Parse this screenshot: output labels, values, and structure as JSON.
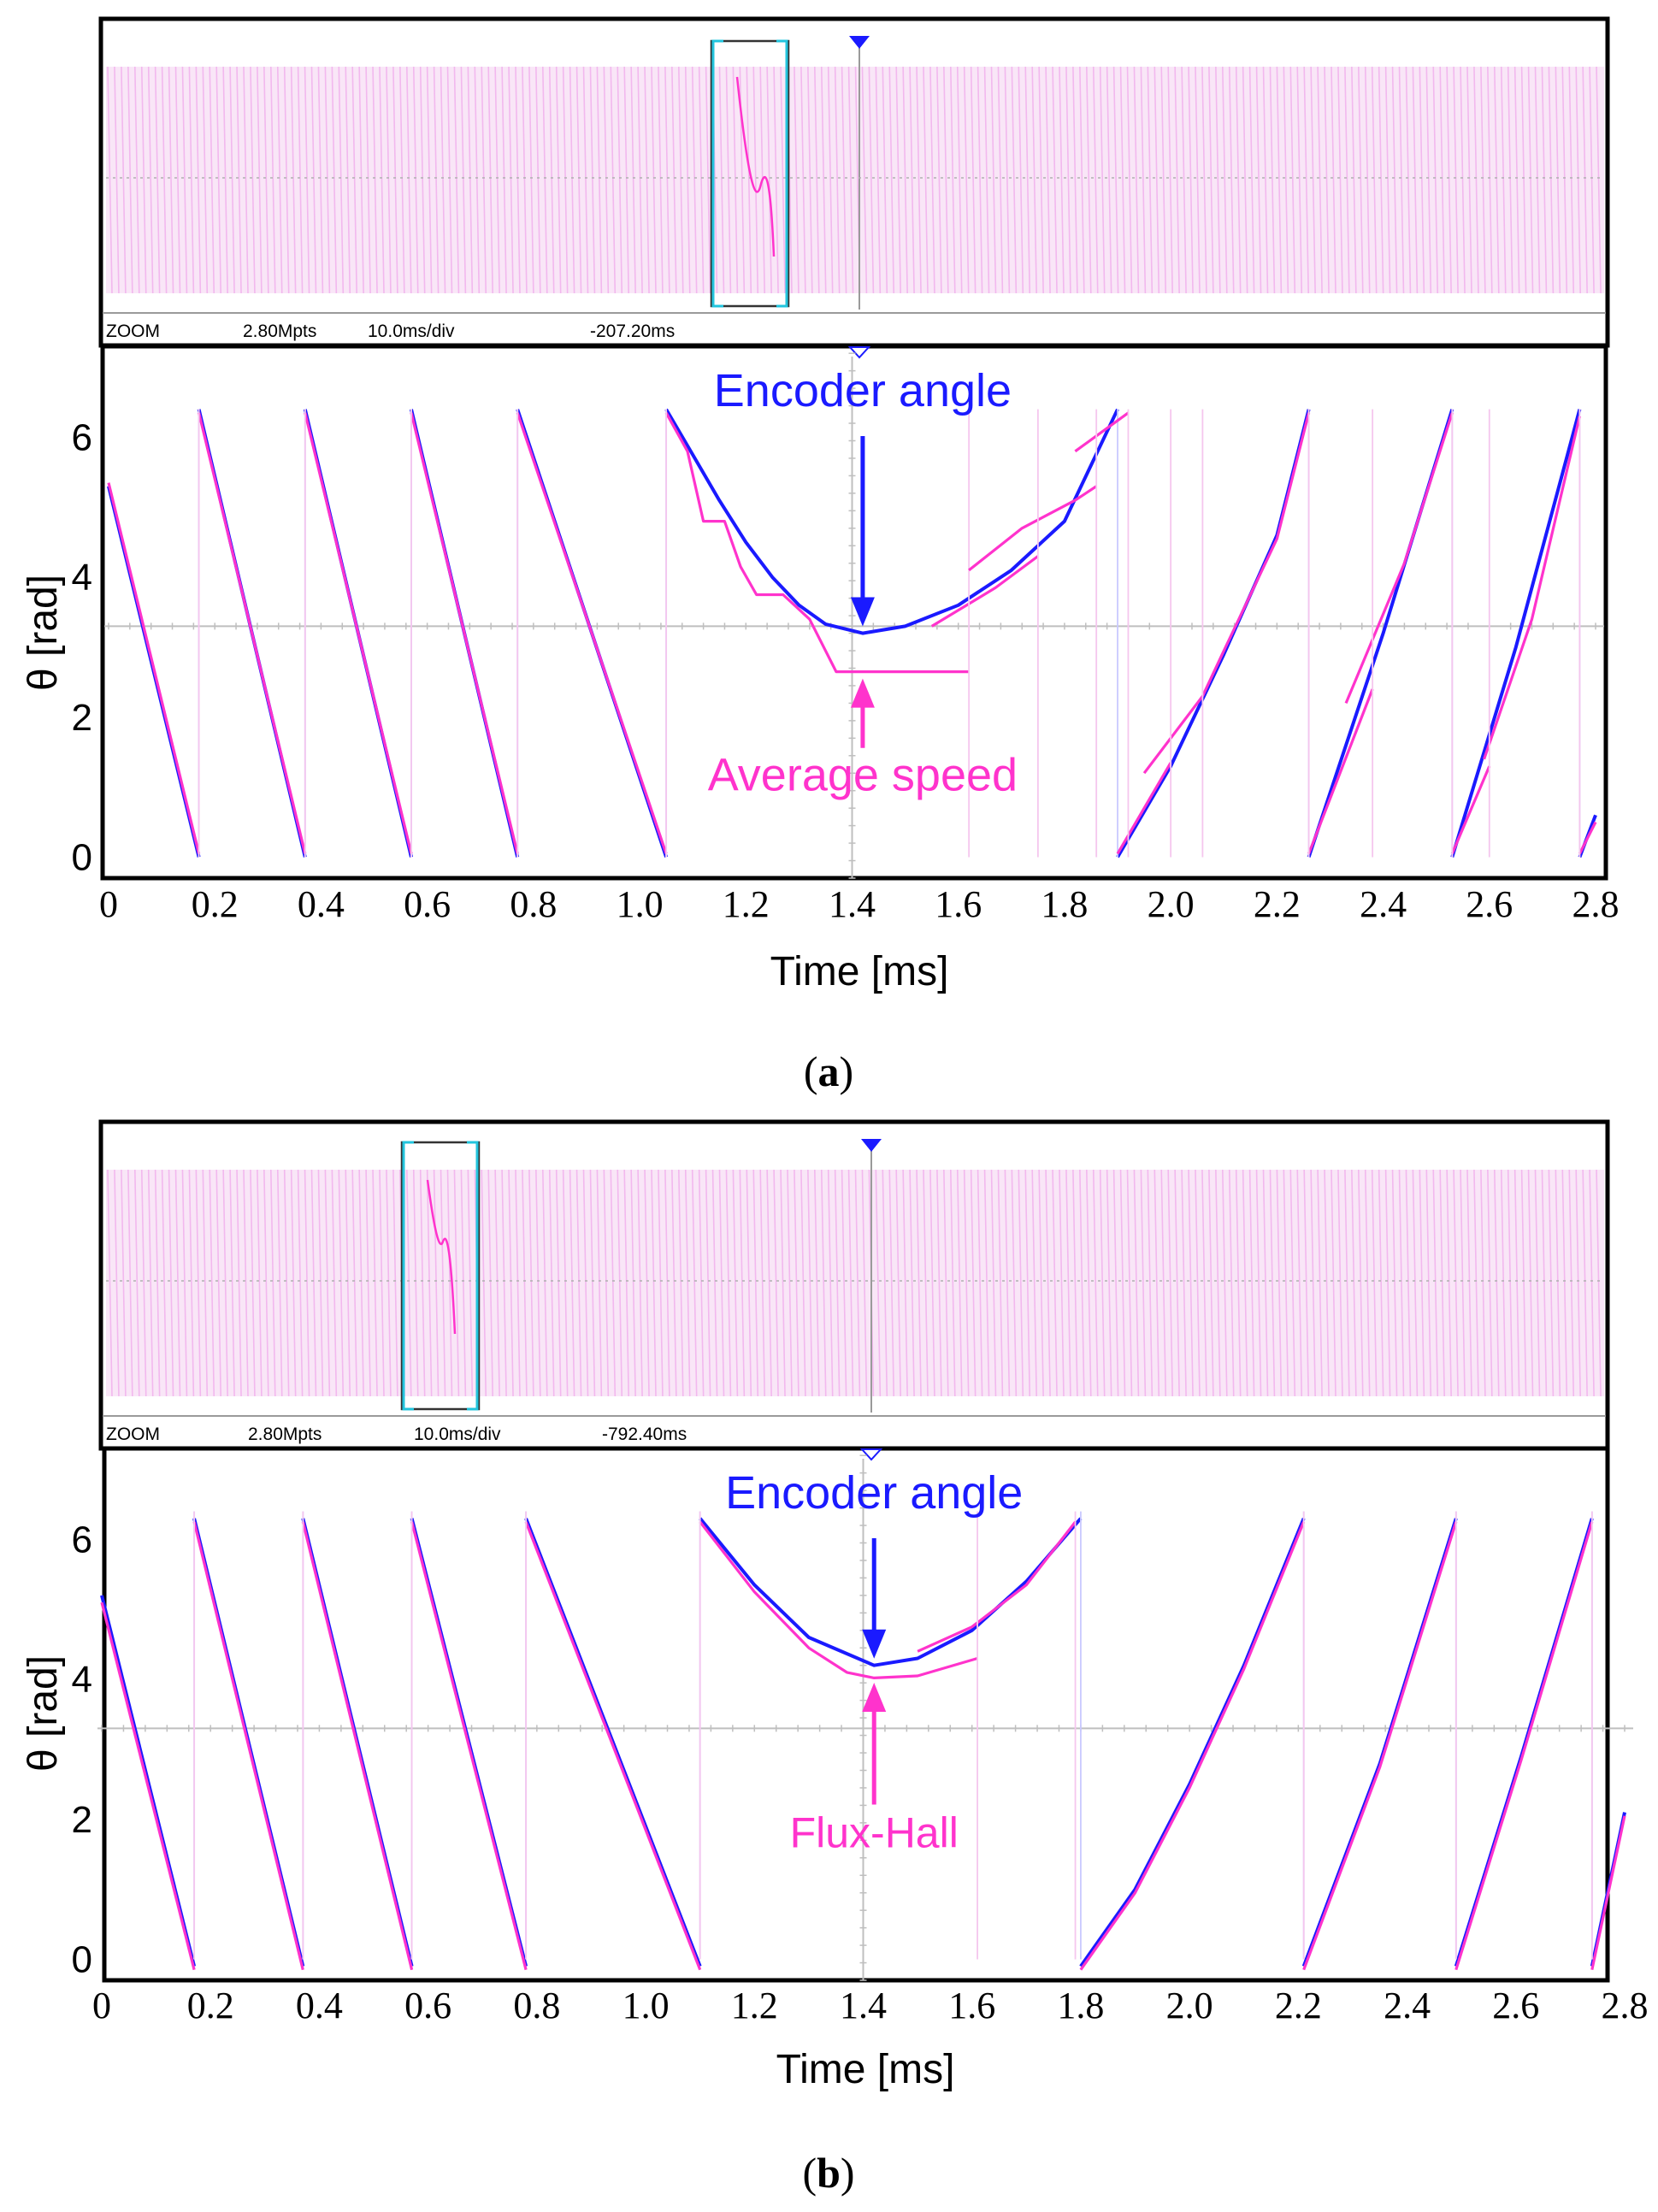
{
  "figure": {
    "colors": {
      "encoder": "#1a1aff",
      "estimate": "#ff33cc",
      "overview_trace": "#f2b8ee",
      "grid": "#bfbfbf",
      "bracket": "#22c4dd",
      "frame": "#000000"
    }
  },
  "chart_data": [
    {
      "type": "line",
      "panel_label": "a",
      "overview": {
        "mode_label": "ZOOM",
        "points_label": "2.80Mpts",
        "timebase_label": "10.0ms/div",
        "offset_label": "-207.20ms"
      },
      "xlabel": "Time [ms]",
      "ylabel": "θ [rad]",
      "xlim": [
        0,
        2.8
      ],
      "ylim": [
        -0.3,
        7.3
      ],
      "xticks": [
        "0",
        "0.2",
        "0.4",
        "0.6",
        "0.8",
        "1.0",
        "1.2",
        "1.4",
        "1.6",
        "1.8",
        "2.0",
        "2.2",
        "2.4",
        "2.6",
        "2.8"
      ],
      "yticks": [
        "0",
        "2",
        "4",
        "6"
      ],
      "annotations": {
        "top": "Encoder angle",
        "bottom": "Average speed",
        "x": 1.42,
        "top_y": 3.2,
        "bottom_y": 2.65
      },
      "series": [
        {
          "name": "Encoder angle",
          "segments": [
            [
              [
                0,
                5.3
              ],
              [
                0.17,
                0
              ]
            ],
            [
              [
                0.17,
                6.4
              ],
              [
                0.37,
                0
              ]
            ],
            [
              [
                0.37,
                6.4
              ],
              [
                0.57,
                0
              ]
            ],
            [
              [
                0.57,
                6.4
              ],
              [
                0.77,
                0
              ]
            ],
            [
              [
                0.77,
                6.4
              ],
              [
                1.05,
                0
              ]
            ],
            [
              [
                1.05,
                6.4
              ],
              [
                1.1,
                5.75
              ],
              [
                1.15,
                5.1
              ],
              [
                1.2,
                4.5
              ],
              [
                1.25,
                4.0
              ],
              [
                1.3,
                3.6
              ],
              [
                1.35,
                3.33
              ],
              [
                1.42,
                3.2
              ],
              [
                1.5,
                3.3
              ],
              [
                1.6,
                3.6
              ],
              [
                1.7,
                4.1
              ],
              [
                1.8,
                4.8
              ],
              [
                1.9,
                6.4
              ]
            ],
            [
              [
                1.9,
                0
              ],
              [
                2.0,
                1.3
              ],
              [
                2.1,
                2.9
              ],
              [
                2.2,
                4.6
              ],
              [
                2.26,
                6.4
              ]
            ],
            [
              [
                2.26,
                0
              ],
              [
                2.4,
                3.2
              ],
              [
                2.53,
                6.4
              ]
            ],
            [
              [
                2.53,
                0
              ],
              [
                2.65,
                3.0
              ],
              [
                2.77,
                6.4
              ]
            ],
            [
              [
                2.77,
                0
              ],
              [
                2.8,
                0.6
              ]
            ]
          ]
        },
        {
          "name": "Average speed",
          "segments": [
            [
              [
                0,
                5.35
              ],
              [
                0.17,
                0.05
              ]
            ],
            [
              [
                0.17,
                6.35
              ],
              [
                0.37,
                0.05
              ]
            ],
            [
              [
                0.37,
                6.35
              ],
              [
                0.57,
                0.05
              ]
            ],
            [
              [
                0.57,
                6.35
              ],
              [
                0.77,
                0.05
              ]
            ],
            [
              [
                0.77,
                6.35
              ],
              [
                1.05,
                0.05
              ]
            ],
            [
              [
                1.05,
                6.35
              ],
              [
                1.09,
                5.8
              ],
              [
                1.12,
                4.8
              ],
              [
                1.16,
                4.8
              ],
              [
                1.19,
                4.15
              ],
              [
                1.22,
                3.75
              ],
              [
                1.27,
                3.75
              ],
              [
                1.32,
                3.4
              ],
              [
                1.37,
                2.65
              ],
              [
                1.62,
                2.65
              ]
            ],
            [
              [
                1.55,
                3.3
              ],
              [
                1.67,
                3.85
              ],
              [
                1.75,
                4.3
              ]
            ],
            [
              [
                1.62,
                4.1
              ],
              [
                1.72,
                4.7
              ],
              [
                1.82,
                5.1
              ],
              [
                1.86,
                5.3
              ]
            ],
            [
              [
                1.82,
                5.8
              ],
              [
                1.92,
                6.35
              ]
            ],
            [
              [
                1.9,
                0.05
              ],
              [
                2.0,
                1.35
              ]
            ],
            [
              [
                1.95,
                1.2
              ],
              [
                2.06,
                2.3
              ]
            ],
            [
              [
                2.06,
                2.3
              ],
              [
                2.1,
                2.95
              ],
              [
                2.2,
                4.55
              ],
              [
                2.26,
                6.35
              ]
            ],
            [
              [
                2.26,
                0.05
              ],
              [
                2.38,
                2.4
              ]
            ],
            [
              [
                2.33,
                2.2
              ],
              [
                2.44,
                4.2
              ],
              [
                2.53,
                6.35
              ]
            ],
            [
              [
                2.53,
                0.05
              ],
              [
                2.6,
                1.3
              ]
            ],
            [
              [
                2.59,
                1.4
              ],
              [
                2.68,
                3.4
              ],
              [
                2.77,
                6.3
              ]
            ],
            [
              [
                2.77,
                0.05
              ],
              [
                2.8,
                0.5
              ]
            ]
          ]
        }
      ]
    },
    {
      "type": "line",
      "panel_label": "b",
      "overview": {
        "mode_label": "ZOOM",
        "points_label": "2.80Mpts",
        "timebase_label": "10.0ms/div",
        "offset_label": "-792.40ms"
      },
      "xlabel": "Time [ms]",
      "ylabel": "θ [rad]",
      "xlim": [
        0,
        2.8
      ],
      "ylim": [
        -0.3,
        7.3
      ],
      "xticks": [
        "0",
        "0.2",
        "0.4",
        "0.6",
        "0.8",
        "1.0",
        "1.2",
        "1.4",
        "1.6",
        "1.8",
        "2.0",
        "2.2",
        "2.4",
        "2.6",
        "2.8"
      ],
      "yticks": [
        "0",
        "2",
        "4",
        "6"
      ],
      "annotations": {
        "top": "Encoder angle",
        "bottom": "Flux-Hall",
        "x": 1.42,
        "top_y": 4.2,
        "bottom_y": 4.05
      },
      "series": [
        {
          "name": "Encoder angle",
          "segments": [
            [
              [
                0,
                5.2
              ],
              [
                0.17,
                -0.1
              ]
            ],
            [
              [
                0.17,
                6.3
              ],
              [
                0.37,
                -0.1
              ]
            ],
            [
              [
                0.37,
                6.3
              ],
              [
                0.57,
                -0.1
              ]
            ],
            [
              [
                0.57,
                6.3
              ],
              [
                0.78,
                -0.1
              ]
            ],
            [
              [
                0.78,
                6.3
              ],
              [
                1.1,
                -0.1
              ]
            ],
            [
              [
                1.1,
                6.3
              ],
              [
                1.2,
                5.35
              ],
              [
                1.3,
                4.6
              ],
              [
                1.42,
                4.2
              ],
              [
                1.5,
                4.3
              ],
              [
                1.6,
                4.7
              ],
              [
                1.7,
                5.4
              ],
              [
                1.8,
                6.3
              ]
            ],
            [
              [
                1.8,
                -0.1
              ],
              [
                1.9,
                1.0
              ],
              [
                2.0,
                2.5
              ],
              [
                2.1,
                4.2
              ],
              [
                2.21,
                6.3
              ]
            ],
            [
              [
                2.21,
                -0.1
              ],
              [
                2.35,
                2.8
              ],
              [
                2.49,
                6.3
              ]
            ],
            [
              [
                2.49,
                -0.1
              ],
              [
                2.61,
                2.9
              ],
              [
                2.74,
                6.3
              ]
            ],
            [
              [
                2.74,
                -0.1
              ],
              [
                2.8,
                2.1
              ]
            ]
          ]
        },
        {
          "name": "Flux-Hall",
          "segments": [
            [
              [
                0,
                5.1
              ],
              [
                0.17,
                -0.15
              ]
            ],
            [
              [
                0.17,
                6.25
              ],
              [
                0.37,
                -0.15
              ]
            ],
            [
              [
                0.37,
                6.25
              ],
              [
                0.57,
                -0.15
              ]
            ],
            [
              [
                0.57,
                6.25
              ],
              [
                0.78,
                -0.15
              ]
            ],
            [
              [
                0.78,
                6.25
              ],
              [
                1.1,
                -0.15
              ]
            ],
            [
              [
                1.1,
                6.25
              ],
              [
                1.2,
                5.25
              ],
              [
                1.3,
                4.45
              ],
              [
                1.37,
                4.1
              ],
              [
                1.42,
                4.02
              ],
              [
                1.5,
                4.05
              ],
              [
                1.61,
                4.3
              ]
            ],
            [
              [
                1.5,
                4.4
              ],
              [
                1.6,
                4.75
              ],
              [
                1.7,
                5.35
              ],
              [
                1.79,
                6.25
              ]
            ],
            [
              [
                1.8,
                -0.15
              ],
              [
                1.9,
                0.95
              ],
              [
                2.0,
                2.45
              ],
              [
                2.1,
                4.15
              ],
              [
                2.21,
                6.25
              ]
            ],
            [
              [
                2.21,
                -0.15
              ],
              [
                2.35,
                2.75
              ],
              [
                2.49,
                6.25
              ]
            ],
            [
              [
                2.49,
                -0.15
              ],
              [
                2.61,
                2.85
              ],
              [
                2.74,
                6.25
              ]
            ],
            [
              [
                2.74,
                -0.15
              ],
              [
                2.8,
                2.05
              ]
            ]
          ]
        }
      ]
    }
  ]
}
